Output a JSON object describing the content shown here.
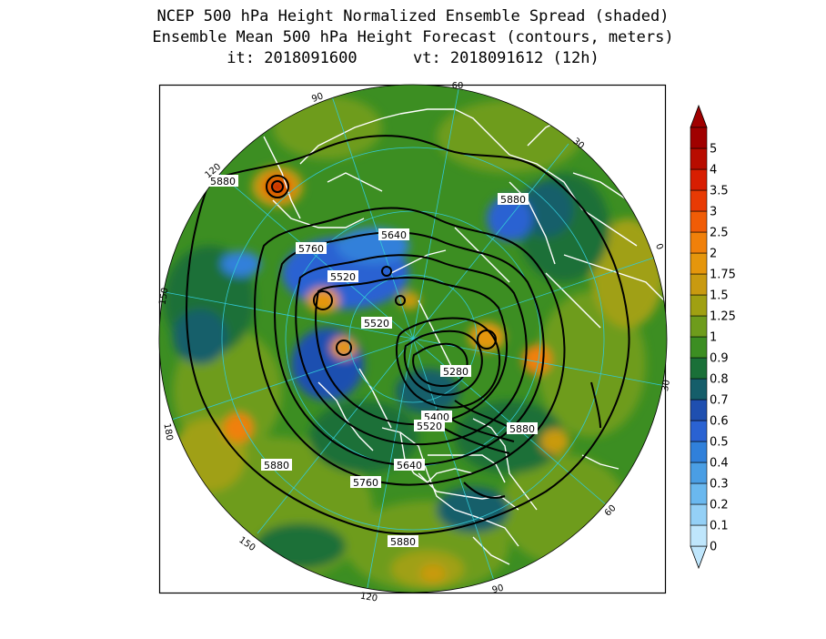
{
  "title": {
    "line1": "NCEP 500 hPa Height Normalized Ensemble Spread (shaded)",
    "line2": "Ensemble Mean 500 hPa Height Forecast (contours, meters)",
    "line3": "it: 2018091600      vt: 2018091612 (12h)"
  },
  "colorbar": {
    "levels": [
      "0",
      "0.1",
      "0.2",
      "0.3",
      "0.4",
      "0.5",
      "0.6",
      "0.7",
      "0.8",
      "0.9",
      "1",
      "1.25",
      "1.5",
      "1.75",
      "2",
      "2.5",
      "3",
      "3.5",
      "4",
      "5"
    ],
    "colors": [
      "#bfe6fc",
      "#94d0f6",
      "#6ab8ef",
      "#4a9ee4",
      "#3080da",
      "#2a62d2",
      "#1f4fb0",
      "#155e6a",
      "#1a7038",
      "#3c8e22",
      "#6e9c1c",
      "#a0a012",
      "#c99a10",
      "#e5960c",
      "#f0800a",
      "#f05c06",
      "#e83a04",
      "#d81e02",
      "#b80c00",
      "#a00000"
    ]
  },
  "contour_labels": {
    "c1": "5880",
    "c2": "5640",
    "c3": "5760",
    "c4": "5520",
    "c5": "5880",
    "c6": "5520",
    "c7": "5280",
    "c8": "5400",
    "c9": "5520",
    "c10": "5880",
    "c11": "5640",
    "c12": "5880",
    "c13": "5760",
    "c14": "5880"
  },
  "grid_labels": {
    "g1": "60",
    "g2": "90",
    "g3": "30",
    "g4": "120",
    "g5": "0",
    "g6": "150",
    "g7": "30",
    "g8": "180",
    "g9": "60",
    "g10": "150",
    "g11": "120",
    "g12": "90"
  },
  "colors": {
    "frame": "#000000",
    "contour": "#000000",
    "coast": "#ffffff",
    "grid": "#33c9d6"
  }
}
